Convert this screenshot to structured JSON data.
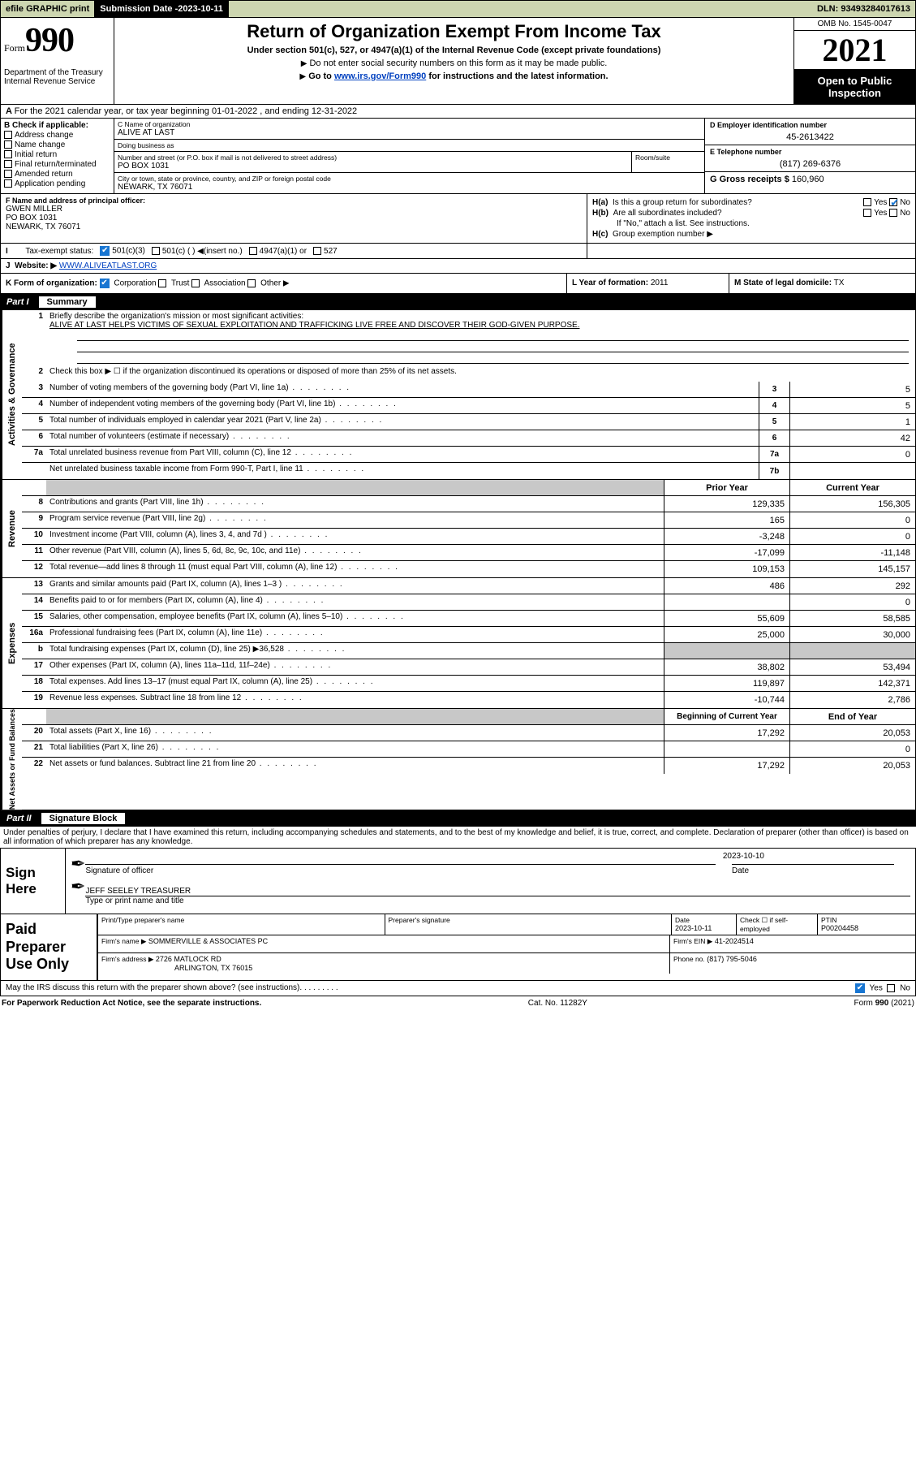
{
  "topbar": {
    "efile": "efile GRAPHIC print",
    "sub_label": "Submission Date - ",
    "sub_date": "2023-10-11",
    "dln": "DLN: 93493284017613"
  },
  "header": {
    "form_prefix": "Form",
    "form_number": "990",
    "dept": "Department of the Treasury\nInternal Revenue Service",
    "title": "Return of Organization Exempt From Income Tax",
    "sub": "Under section 501(c), 527, or 4947(a)(1) of the Internal Revenue Code (except private foundations)",
    "note1": "Do not enter social security numbers on this form as it may be made public.",
    "note2_pre": "Go to ",
    "note2_link": "www.irs.gov/Form990",
    "note2_post": " for instructions and the latest information.",
    "omb": "OMB No. 1545-0047",
    "year": "2021",
    "otp": "Open to Public Inspection"
  },
  "row_a": "For the 2021 calendar year, or tax year beginning 01-01-2022    , and ending 12-31-2022",
  "b": {
    "label": "B Check if applicable:",
    "items": [
      "Address change",
      "Name change",
      "Initial return",
      "Final return/terminated",
      "Amended return",
      "Application pending"
    ]
  },
  "c": {
    "name_label": "C Name of organization",
    "name": "ALIVE AT LAST",
    "dba_label": "Doing business as",
    "dba": "",
    "street_label": "Number and street (or P.O. box if mail is not delivered to street address)",
    "room_label": "Room/suite",
    "street": "PO BOX 1031",
    "city_label": "City or town, state or province, country, and ZIP or foreign postal code",
    "city": "NEWARK, TX  76071"
  },
  "d": {
    "label": "D Employer identification number",
    "value": "45-2613422"
  },
  "e": {
    "label": "E Telephone number",
    "value": "(817) 269-6376"
  },
  "g": {
    "label": "G Gross receipts $",
    "value": "160,960"
  },
  "f": {
    "label": "F Name and address of principal officer:",
    "name": "GWEN MILLER",
    "addr1": "PO BOX 1031",
    "addr2": "NEWARK, TX  76071"
  },
  "h": {
    "a": "Is this a group return for subordinates?",
    "a_yes": "Yes",
    "a_no": "No",
    "b": "Are all subordinates included?",
    "b_note": "If \"No,\" attach a list. See instructions.",
    "c": "Group exemption number ▶"
  },
  "i": {
    "label": "Tax-exempt status:",
    "o1": "501(c)(3)",
    "o2": "501(c) (  )  ◀(insert no.)",
    "o3": "4947(a)(1) or",
    "o4": "527"
  },
  "j": {
    "label": "Website: ▶",
    "value": "WWW.ALIVEATLAST.ORG"
  },
  "k": {
    "label": "K Form of organization:",
    "o1": "Corporation",
    "o2": "Trust",
    "o3": "Association",
    "o4": "Other ▶"
  },
  "l": {
    "label": "L Year of formation:",
    "value": "2011"
  },
  "m": {
    "label": "M State of legal domicile:",
    "value": "TX"
  },
  "part1": {
    "num": "Part I",
    "title": "Summary"
  },
  "vtabs": {
    "gov": "Activities & Governance",
    "rev": "Revenue",
    "exp": "Expenses",
    "net": "Net Assets or Fund Balances"
  },
  "s1": {
    "label": "Briefly describe the organization's mission or most significant activities:",
    "text": "ALIVE AT LAST HELPS VICTIMS OF SEXUAL EXPLOITATION AND TRAFFICKING LIVE FREE AND DISCOVER THEIR GOD-GIVEN PURPOSE."
  },
  "s2": "Check this box ▶ ☐  if the organization discontinued its operations or disposed of more than 25% of its net assets.",
  "lines_gov": [
    {
      "n": "3",
      "t": "Number of voting members of the governing body (Part VI, line 1a)",
      "b": "3",
      "v": "5"
    },
    {
      "n": "4",
      "t": "Number of independent voting members of the governing body (Part VI, line 1b)",
      "b": "4",
      "v": "5"
    },
    {
      "n": "5",
      "t": "Total number of individuals employed in calendar year 2021 (Part V, line 2a)",
      "b": "5",
      "v": "1"
    },
    {
      "n": "6",
      "t": "Total number of volunteers (estimate if necessary)",
      "b": "6",
      "v": "42"
    },
    {
      "n": "7a",
      "t": "Total unrelated business revenue from Part VIII, column (C), line 12",
      "b": "7a",
      "v": "0"
    },
    {
      "n": "",
      "t": "Net unrelated business taxable income from Form 990-T, Part I, line 11",
      "b": "7b",
      "v": ""
    }
  ],
  "col_headers": {
    "prior": "Prior Year",
    "current": "Current Year"
  },
  "lines_rev": [
    {
      "n": "8",
      "t": "Contributions and grants (Part VIII, line 1h)",
      "p": "129,335",
      "c": "156,305"
    },
    {
      "n": "9",
      "t": "Program service revenue (Part VIII, line 2g)",
      "p": "165",
      "c": "0"
    },
    {
      "n": "10",
      "t": "Investment income (Part VIII, column (A), lines 3, 4, and 7d )",
      "p": "-3,248",
      "c": "0"
    },
    {
      "n": "11",
      "t": "Other revenue (Part VIII, column (A), lines 5, 6d, 8c, 9c, 10c, and 11e)",
      "p": "-17,099",
      "c": "-11,148"
    },
    {
      "n": "12",
      "t": "Total revenue—add lines 8 through 11 (must equal Part VIII, column (A), line 12)",
      "p": "109,153",
      "c": "145,157"
    }
  ],
  "lines_exp": [
    {
      "n": "13",
      "t": "Grants and similar amounts paid (Part IX, column (A), lines 1–3 )",
      "p": "486",
      "c": "292"
    },
    {
      "n": "14",
      "t": "Benefits paid to or for members (Part IX, column (A), line 4)",
      "p": "",
      "c": "0"
    },
    {
      "n": "15",
      "t": "Salaries, other compensation, employee benefits (Part IX, column (A), lines 5–10)",
      "p": "55,609",
      "c": "58,585"
    },
    {
      "n": "16a",
      "t": "Professional fundraising fees (Part IX, column (A), line 11e)",
      "p": "25,000",
      "c": "30,000"
    },
    {
      "n": "b",
      "t": "Total fundraising expenses (Part IX, column (D), line 25) ▶36,528",
      "p": "GREY",
      "c": "GREY"
    },
    {
      "n": "17",
      "t": "Other expenses (Part IX, column (A), lines 11a–11d, 11f–24e)",
      "p": "38,802",
      "c": "53,494"
    },
    {
      "n": "18",
      "t": "Total expenses. Add lines 13–17 (must equal Part IX, column (A), line 25)",
      "p": "119,897",
      "c": "142,371"
    },
    {
      "n": "19",
      "t": "Revenue less expenses. Subtract line 18 from line 12",
      "p": "-10,744",
      "c": "2,786"
    }
  ],
  "col_headers2": {
    "begin": "Beginning of Current Year",
    "end": "End of Year"
  },
  "lines_net": [
    {
      "n": "20",
      "t": "Total assets (Part X, line 16)",
      "p": "17,292",
      "c": "20,053"
    },
    {
      "n": "21",
      "t": "Total liabilities (Part X, line 26)",
      "p": "",
      "c": "0"
    },
    {
      "n": "22",
      "t": "Net assets or fund balances. Subtract line 21 from line 20",
      "p": "17,292",
      "c": "20,053"
    }
  ],
  "part2": {
    "num": "Part II",
    "title": "Signature Block"
  },
  "sig_intro": "Under penalties of perjury, I declare that I have examined this return, including accompanying schedules and statements, and to the best of my knowledge and belief, it is true, correct, and complete. Declaration of preparer (other than officer) is based on all information of which preparer has any knowledge.",
  "sign": {
    "here": "Sign Here",
    "sig_label": "Signature of officer",
    "date_label": "Date",
    "date": "2023-10-10",
    "name": "JEFF SEELEY  TREASURER",
    "name_label": "Type or print name and title"
  },
  "paid": {
    "title": "Paid Preparer Use Only",
    "h1": "Print/Type preparer's name",
    "h2": "Preparer's signature",
    "h3": "Date",
    "h3v": "2023-10-11",
    "h4": "Check ☐ if self-employed",
    "h5": "PTIN",
    "h5v": "P00204458",
    "firm_label": "Firm's name    ▶",
    "firm": "SOMMERVILLE & ASSOCIATES PC",
    "ein_label": "Firm's EIN ▶",
    "ein": "41-2024514",
    "addr_label": "Firm's address ▶",
    "addr1": "2726 MATLOCK RD",
    "addr2": "ARLINGTON, TX  76015",
    "phone_label": "Phone no.",
    "phone": "(817) 795-5046"
  },
  "last": {
    "q": "May the IRS discuss this return with the preparer shown above? (see instructions)",
    "yes": "Yes",
    "no": "No"
  },
  "footer": {
    "l": "For Paperwork Reduction Act Notice, see the separate instructions.",
    "c": "Cat. No. 11282Y",
    "r_pre": "Form ",
    "r_b": "990",
    "r_post": " (2021)"
  }
}
